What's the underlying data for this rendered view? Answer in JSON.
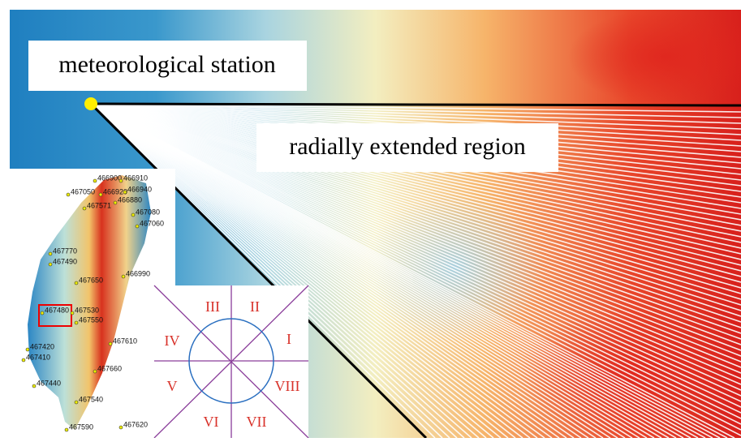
{
  "labels": {
    "station": "meteorological station",
    "region": "radially extended region"
  },
  "inset_map": {
    "stations": [
      "466900",
      "466910",
      "467050",
      "466920",
      "466940",
      "466880",
      "467571",
      "467080",
      "467060",
      "467770",
      "467490",
      "466990",
      "467650",
      "467480",
      "467530",
      "467550",
      "467610",
      "467420",
      "467410",
      "467660",
      "467440",
      "467540",
      "467590",
      "467620"
    ]
  },
  "sectors": [
    "I",
    "II",
    "III",
    "IV",
    "V",
    "VI",
    "VII",
    "VIII"
  ]
}
